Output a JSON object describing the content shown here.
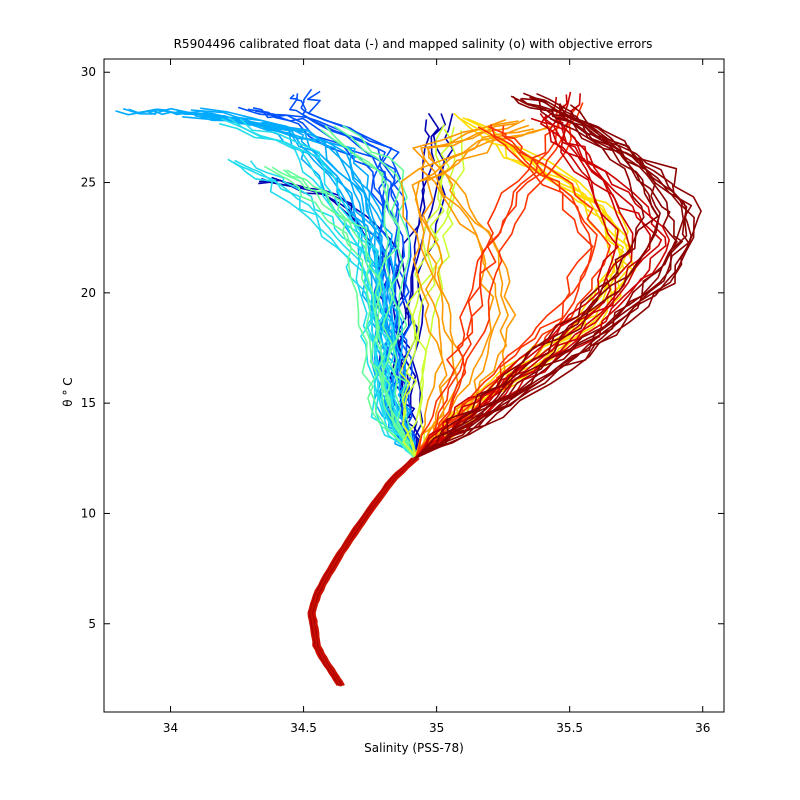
{
  "chart_data": {
    "type": "line",
    "title": "R5904496 calibrated float data (-) and mapped salinity (o) with objective errors",
    "xlabel": "Salinity (PSS-78)",
    "ylabel": "θ ° C",
    "xlim": [
      33.75,
      36.08
    ],
    "ylim": [
      1,
      30.6
    ],
    "xticks": [
      34,
      34.5,
      35,
      35.5,
      36
    ],
    "yticks": [
      5,
      10,
      15,
      20,
      25,
      30
    ],
    "xtick_labels": [
      "34",
      "34.5",
      "35",
      "35.5",
      "36"
    ],
    "ytick_labels": [
      "5",
      "10",
      "15",
      "20",
      "25",
      "30"
    ],
    "grid": false,
    "legend": "none",
    "colormap": "jet (blue = early profiles, dark red = late profiles)",
    "colors": [
      "#0000b0",
      "#0050ff",
      "#00aaff",
      "#22ddee",
      "#66ff99",
      "#ccff33",
      "#ffdd00",
      "#ff9900",
      "#ff3300",
      "#cc0000",
      "#8b0000"
    ],
    "deep_branch": [
      [
        34.64,
        2.2
      ],
      [
        34.62,
        2.6
      ],
      [
        34.58,
        3.3
      ],
      [
        34.55,
        4.0
      ],
      [
        34.54,
        4.8
      ],
      [
        34.53,
        5.5
      ],
      [
        34.55,
        6.3
      ],
      [
        34.59,
        7.2
      ],
      [
        34.64,
        8.2
      ],
      [
        34.7,
        9.3
      ],
      [
        34.77,
        10.5
      ],
      [
        34.84,
        11.6
      ],
      [
        34.92,
        12.5
      ]
    ],
    "series": [
      {
        "color_index": 0,
        "values": [
          [
            34.92,
            12.5
          ],
          [
            34.88,
            13.5
          ],
          [
            34.85,
            15.0
          ],
          [
            34.84,
            17.5
          ],
          [
            34.82,
            20.0
          ],
          [
            34.78,
            22.5
          ],
          [
            34.6,
            24.5
          ],
          [
            34.35,
            25.1
          ]
        ]
      },
      {
        "color_index": 0,
        "values": [
          [
            34.92,
            12.5
          ],
          [
            34.9,
            14.0
          ],
          [
            34.88,
            17.0
          ],
          [
            34.9,
            20.0
          ],
          [
            34.95,
            23.0
          ],
          [
            35.0,
            26.0
          ],
          [
            35.0,
            28.0
          ]
        ]
      },
      {
        "color_index": 1,
        "values": [
          [
            34.92,
            12.5
          ],
          [
            34.86,
            14.5
          ],
          [
            34.85,
            17.0
          ],
          [
            34.86,
            20.0
          ],
          [
            34.85,
            23.0
          ],
          [
            34.8,
            25.5
          ],
          [
            34.5,
            27.8
          ],
          [
            34.3,
            28.3
          ]
        ]
      },
      {
        "color_index": 1,
        "values": [
          [
            34.92,
            12.5
          ],
          [
            34.84,
            14.5
          ],
          [
            34.82,
            17.5
          ],
          [
            34.82,
            21.0
          ],
          [
            34.82,
            24.0
          ],
          [
            34.8,
            26.5
          ],
          [
            34.5,
            28.2
          ],
          [
            34.5,
            29.1
          ]
        ]
      },
      {
        "color_index": 2,
        "values": [
          [
            34.92,
            12.5
          ],
          [
            34.84,
            14.8
          ],
          [
            34.82,
            17.5
          ],
          [
            34.8,
            21.0
          ],
          [
            34.75,
            24.0
          ],
          [
            34.65,
            26.5
          ],
          [
            34.3,
            27.8
          ],
          [
            34.0,
            28.2
          ],
          [
            33.85,
            28.2
          ]
        ]
      },
      {
        "color_index": 2,
        "values": [
          [
            34.92,
            12.5
          ],
          [
            34.85,
            14.0
          ],
          [
            34.83,
            16.5
          ],
          [
            34.8,
            19.5
          ],
          [
            34.78,
            22.5
          ],
          [
            34.68,
            25.0
          ],
          [
            34.5,
            27.3
          ],
          [
            34.05,
            28.3
          ]
        ]
      },
      {
        "color_index": 2,
        "values": [
          [
            34.92,
            12.5
          ],
          [
            34.83,
            14.5
          ],
          [
            34.8,
            17.0
          ],
          [
            34.78,
            20.0
          ],
          [
            34.72,
            23.0
          ],
          [
            34.55,
            26.0
          ],
          [
            34.4,
            27.5
          ],
          [
            34.1,
            28.0
          ]
        ]
      },
      {
        "color_index": 3,
        "values": [
          [
            34.92,
            12.5
          ],
          [
            34.8,
            14.5
          ],
          [
            34.78,
            17.5
          ],
          [
            34.76,
            19.8
          ],
          [
            34.7,
            21.5
          ],
          [
            34.55,
            23.5
          ],
          [
            34.4,
            25.0
          ],
          [
            34.25,
            26.0
          ]
        ]
      },
      {
        "color_index": 3,
        "values": [
          [
            34.92,
            12.5
          ],
          [
            34.82,
            14.0
          ],
          [
            34.8,
            16.5
          ],
          [
            34.78,
            19.0
          ],
          [
            34.74,
            22.0
          ],
          [
            34.6,
            24.5
          ],
          [
            34.5,
            26.5
          ],
          [
            34.2,
            27.8
          ]
        ]
      },
      {
        "color_index": 4,
        "values": [
          [
            34.92,
            12.5
          ],
          [
            34.8,
            14.5
          ],
          [
            34.76,
            17.0
          ],
          [
            34.75,
            20.0
          ],
          [
            34.68,
            22.8
          ],
          [
            34.55,
            24.5
          ],
          [
            34.4,
            25.6
          ]
        ]
      },
      {
        "color_index": 4,
        "values": [
          [
            34.92,
            12.5
          ],
          [
            34.83,
            14.8
          ],
          [
            34.82,
            17.0
          ],
          [
            34.83,
            20.0
          ],
          [
            34.85,
            23.0
          ],
          [
            34.82,
            25.5
          ],
          [
            34.6,
            27.5
          ]
        ]
      },
      {
        "color_index": 5,
        "values": [
          [
            34.92,
            12.5
          ],
          [
            34.9,
            14.0
          ],
          [
            34.92,
            16.5
          ],
          [
            34.95,
            19.5
          ],
          [
            35.0,
            22.5
          ],
          [
            35.05,
            25.0
          ],
          [
            35.05,
            27.5
          ]
        ]
      },
      {
        "color_index": 6,
        "values": [
          [
            34.92,
            12.5
          ],
          [
            35.05,
            14.3
          ],
          [
            35.3,
            16.5
          ],
          [
            35.55,
            18.5
          ],
          [
            35.7,
            21.0
          ],
          [
            35.65,
            23.5
          ],
          [
            35.4,
            25.5
          ],
          [
            35.2,
            27.0
          ]
        ]
      },
      {
        "color_index": 6,
        "values": [
          [
            34.92,
            12.5
          ],
          [
            35.1,
            14.5
          ],
          [
            35.4,
            17.0
          ],
          [
            35.6,
            19.0
          ],
          [
            35.72,
            22.0
          ],
          [
            35.55,
            24.5
          ],
          [
            35.3,
            26.5
          ],
          [
            35.1,
            28.0
          ]
        ]
      },
      {
        "color_index": 7,
        "values": [
          [
            34.92,
            12.5
          ],
          [
            35.0,
            14.5
          ],
          [
            35.05,
            17.0
          ],
          [
            35.0,
            19.5
          ],
          [
            34.95,
            22.0
          ],
          [
            34.92,
            25.0
          ],
          [
            35.2,
            27.0
          ],
          [
            35.4,
            27.5
          ]
        ]
      },
      {
        "color_index": 7,
        "values": [
          [
            34.92,
            12.5
          ],
          [
            35.08,
            14.2
          ],
          [
            35.2,
            16.5
          ],
          [
            35.25,
            19.0
          ],
          [
            35.2,
            22.0
          ],
          [
            35.05,
            24.5
          ],
          [
            34.95,
            26.5
          ],
          [
            35.3,
            27.8
          ]
        ]
      },
      {
        "color_index": 8,
        "values": [
          [
            34.92,
            12.5
          ],
          [
            35.05,
            14.0
          ],
          [
            35.2,
            15.8
          ],
          [
            35.35,
            17.5
          ],
          [
            35.5,
            19.5
          ],
          [
            35.6,
            22.0
          ],
          [
            35.5,
            24.5
          ],
          [
            35.3,
            26.5
          ],
          [
            35.2,
            27.5
          ]
        ]
      },
      {
        "color_index": 8,
        "values": [
          [
            34.92,
            12.5
          ],
          [
            35.02,
            14.5
          ],
          [
            35.1,
            17.0
          ],
          [
            35.15,
            19.5
          ],
          [
            35.2,
            22.0
          ],
          [
            35.3,
            24.5
          ],
          [
            35.45,
            26.5
          ],
          [
            35.5,
            28.5
          ]
        ]
      },
      {
        "color_index": 9,
        "values": [
          [
            34.92,
            12.5
          ],
          [
            35.1,
            14.0
          ],
          [
            35.3,
            16.0
          ],
          [
            35.55,
            18.0
          ],
          [
            35.75,
            20.5
          ],
          [
            35.85,
            22.5
          ],
          [
            35.7,
            24.5
          ],
          [
            35.5,
            26.5
          ],
          [
            35.4,
            28.0
          ]
        ]
      },
      {
        "color_index": 9,
        "values": [
          [
            34.92,
            12.5
          ],
          [
            35.05,
            14.0
          ],
          [
            35.2,
            15.5
          ],
          [
            35.4,
            17.5
          ],
          [
            35.6,
            19.5
          ],
          [
            35.7,
            22.0
          ],
          [
            35.6,
            25.0
          ],
          [
            35.45,
            27.5
          ],
          [
            35.5,
            29.0
          ]
        ]
      },
      {
        "color_index": 10,
        "values": [
          [
            34.92,
            12.5
          ],
          [
            35.15,
            14.0
          ],
          [
            35.4,
            16.0
          ],
          [
            35.65,
            18.2
          ],
          [
            35.85,
            20.5
          ],
          [
            35.96,
            23.3
          ],
          [
            35.85,
            25.5
          ],
          [
            35.6,
            27.0
          ],
          [
            35.45,
            28.5
          ]
        ]
      },
      {
        "color_index": 10,
        "values": [
          [
            34.92,
            12.5
          ],
          [
            35.12,
            14.0
          ],
          [
            35.35,
            16.0
          ],
          [
            35.6,
            18.0
          ],
          [
            35.8,
            20.0
          ],
          [
            35.92,
            22.3
          ],
          [
            35.9,
            24.0
          ],
          [
            35.7,
            26.5
          ],
          [
            35.5,
            28.0
          ],
          [
            35.3,
            28.8
          ]
        ]
      },
      {
        "color_index": 10,
        "values": [
          [
            34.92,
            12.5
          ],
          [
            35.1,
            14.2
          ],
          [
            35.3,
            16.3
          ],
          [
            35.5,
            18.5
          ],
          [
            35.7,
            20.8
          ],
          [
            35.82,
            23.5
          ],
          [
            35.75,
            25.5
          ],
          [
            35.55,
            27.5
          ],
          [
            35.35,
            29.0
          ]
        ]
      }
    ]
  }
}
